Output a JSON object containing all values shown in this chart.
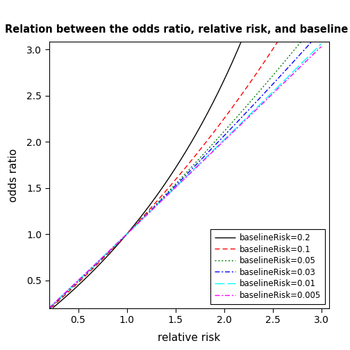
{
  "title": "Relation between the odds ratio, relative risk, and baseline risk",
  "xlabel": "relative risk",
  "ylabel": "odds ratio",
  "xlim": [
    0.2,
    3.08
  ],
  "ylim": [
    0.2,
    3.08
  ],
  "xticks": [
    0.5,
    1.0,
    1.5,
    2.0,
    2.5,
    3.0
  ],
  "yticks": [
    0.5,
    1.0,
    1.5,
    2.0,
    2.5,
    3.0
  ],
  "baseline_risks": [
    0.2,
    0.1,
    0.05,
    0.03,
    0.01,
    0.005
  ],
  "colors": [
    "black",
    "red",
    "green",
    "blue",
    "cyan",
    "magenta"
  ],
  "labels": [
    "baselineRisk=0.2",
    "baselineRisk=0.1",
    "baselineRisk=0.05",
    "baselineRisk=0.03",
    "baselineRisk=0.01",
    "baselineRisk=0.005"
  ],
  "legend_loc": "lower right",
  "background_color": "#ffffff",
  "title_fontsize": 10.5,
  "axis_label_fontsize": 11,
  "tick_fontsize": 10,
  "legend_fontsize": 8.5
}
